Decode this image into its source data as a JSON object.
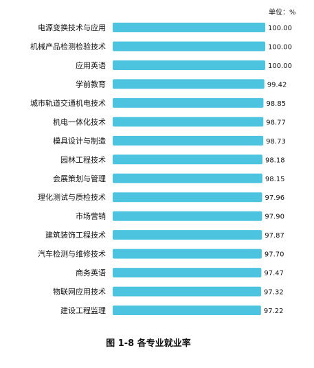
{
  "chart_data": {
    "type": "bar",
    "orientation": "horizontal",
    "unit": "单位：%",
    "caption": "图 1-8 各专业就业率",
    "bar_color": "#4cc3df",
    "categories": [
      "电源变换技术与应用",
      "机械产品检测检验技术",
      "应用英语",
      "学前教育",
      "城市轨道交通机电技术",
      "机电一体化技术",
      "模具设计与制造",
      "园林工程技术",
      "会展策划与管理",
      "理化测试与质检技术",
      "市场营销",
      "建筑装饰工程技术",
      "汽车检测与维修技术",
      "商务英语",
      "物联网应用技术",
      "建设工程监理"
    ],
    "values": [
      100.0,
      100.0,
      100.0,
      99.42,
      98.85,
      98.77,
      98.73,
      98.18,
      98.15,
      97.96,
      97.9,
      97.87,
      97.7,
      97.47,
      97.32,
      97.22
    ],
    "value_labels": [
      "100.00",
      "100.00",
      "100.00",
      "99.42",
      "98.85",
      "98.77",
      "98.73",
      "98.18",
      "98.15",
      "97.96",
      "97.90",
      "97.87",
      "97.70",
      "97.47",
      "97.32",
      "97.22"
    ],
    "xlim": [
      0,
      100
    ]
  }
}
